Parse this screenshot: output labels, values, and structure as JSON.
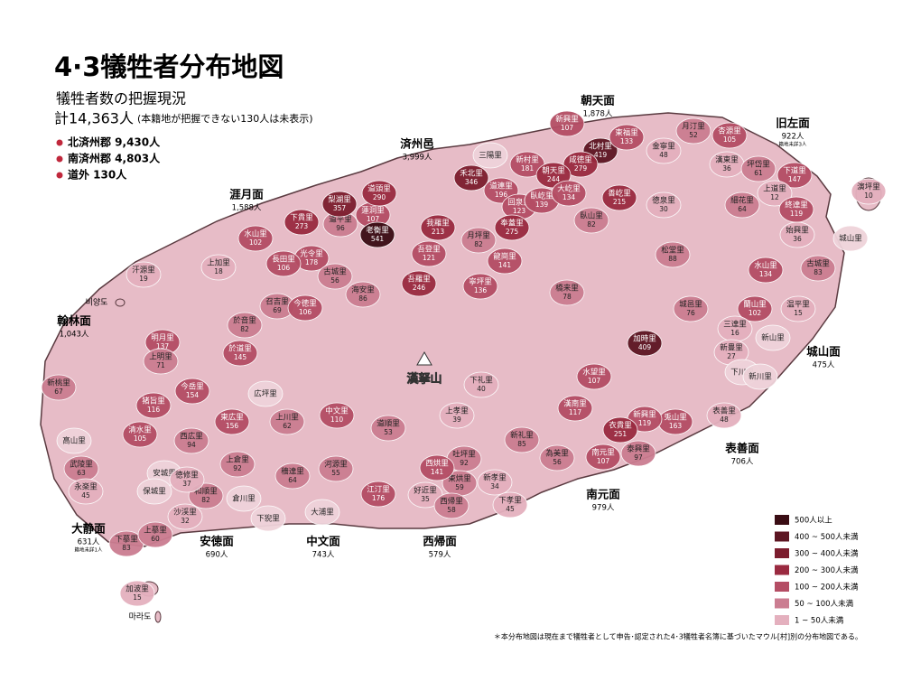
{
  "header": {
    "title": "4·3犠牲者分布地図",
    "subtitle": "犠牲者数の把握現況",
    "total": "計14,363人",
    "note": "(本籍地が把握できない130人は未表示)",
    "stats": [
      "北済州郡 9,430人",
      "南済州郡 4,803人",
      "道外 130人"
    ]
  },
  "regions": [
    {
      "name": "朝天面",
      "count": "1,878人"
    },
    {
      "name": "旧左面",
      "count": "922人",
      "note": "籍地未詳3人"
    },
    {
      "name": "城山面",
      "count": "475人"
    },
    {
      "name": "表善面",
      "count": "706人"
    },
    {
      "name": "南元面",
      "count": "979人"
    },
    {
      "name": "西帰面",
      "count": "579人"
    },
    {
      "name": "中文面",
      "count": "743人"
    },
    {
      "name": "安徳面",
      "count": "690人"
    },
    {
      "name": "大静面",
      "count": "631人",
      "note": "籍地未詳1人"
    },
    {
      "name": "翰林面",
      "count": "1,043人"
    },
    {
      "name": "涯月面",
      "count": "1,588人"
    },
    {
      "name": "済州邑",
      "count": "3,999人"
    }
  ],
  "villages": [
    {
      "name": "新興里",
      "count": 107
    },
    {
      "name": "北村里",
      "count": 419
    },
    {
      "name": "東福里",
      "count": 133
    },
    {
      "name": "咸徳里",
      "count": 279
    },
    {
      "name": "新村里",
      "count": 181
    },
    {
      "name": "朝天里",
      "count": 244
    },
    {
      "name": "金寧里",
      "count": 48
    },
    {
      "name": "月汀里",
      "count": 52
    },
    {
      "name": "杏源里",
      "count": 105
    },
    {
      "name": "漢東里",
      "count": 36
    },
    {
      "name": "坪岱里",
      "count": 61
    },
    {
      "name": "下道里",
      "count": 147
    },
    {
      "name": "上道里",
      "count": 12
    },
    {
      "name": "終達里",
      "count": 119
    },
    {
      "name": "細花里",
      "count": 64
    },
    {
      "name": "徳泉里",
      "count": 30
    },
    {
      "name": "松堂里",
      "count": 88
    },
    {
      "name": "始興里",
      "count": 36
    },
    {
      "name": "城山里"
    },
    {
      "name": "古城里",
      "count": 83
    },
    {
      "name": "水山里",
      "count": 134
    },
    {
      "name": "蘭山里",
      "count": 102
    },
    {
      "name": "温平里",
      "count": 15
    },
    {
      "name": "城邑里",
      "count": 76
    },
    {
      "name": "加時里",
      "count": 409
    },
    {
      "name": "三達里",
      "count": 16
    },
    {
      "name": "新山里"
    },
    {
      "name": "新豊里",
      "count": 27
    },
    {
      "name": "下川里"
    },
    {
      "name": "新川里"
    },
    {
      "name": "表善里",
      "count": 48
    },
    {
      "name": "兎山里",
      "count": 163
    },
    {
      "name": "新興里",
      "count": 119
    },
    {
      "name": "衣貴里",
      "count": 251
    },
    {
      "name": "南元里",
      "count": 107
    },
    {
      "name": "泰興里",
      "count": 97
    },
    {
      "name": "水望里",
      "count": 107
    },
    {
      "name": "漢南里",
      "count": 117
    },
    {
      "name": "為美里",
      "count": 56
    },
    {
      "name": "新礼里",
      "count": 85
    },
    {
      "name": "新孝里",
      "count": 34
    },
    {
      "name": "下孝里",
      "count": 45
    },
    {
      "name": "上孝里",
      "count": 39
    },
    {
      "name": "下礼里",
      "count": 40
    },
    {
      "name": "吐坪里",
      "count": 92
    },
    {
      "name": "東烘里",
      "count": 59
    },
    {
      "name": "西烘里",
      "count": 141
    },
    {
      "name": "好近里",
      "count": 35
    },
    {
      "name": "西帰里",
      "count": 58
    },
    {
      "name": "江汀里",
      "count": 176
    },
    {
      "name": "中文里",
      "count": 110
    },
    {
      "name": "道順里",
      "count": 53
    },
    {
      "name": "河源里",
      "count": 55
    },
    {
      "name": "穡達里",
      "count": 64
    },
    {
      "name": "大浦里"
    },
    {
      "name": "広坪里"
    },
    {
      "name": "東広里",
      "count": 156
    },
    {
      "name": "上川里",
      "count": 62
    },
    {
      "name": "西広里",
      "count": 94
    },
    {
      "name": "上倉里",
      "count": 92
    },
    {
      "name": "今岳里",
      "count": 154
    },
    {
      "name": "猪旨里",
      "count": 116
    },
    {
      "name": "清水里",
      "count": 105
    },
    {
      "name": "於道里",
      "count": 145
    },
    {
      "name": "於音里",
      "count": 82
    },
    {
      "name": "召吉里",
      "count": 69
    },
    {
      "name": "今徳里",
      "count": 106
    },
    {
      "name": "光令里",
      "count": 178
    },
    {
      "name": "古城里",
      "count": 56
    },
    {
      "name": "海安里",
      "count": 86
    },
    {
      "name": "水山里",
      "count": 102
    },
    {
      "name": "長田里",
      "count": 106
    },
    {
      "name": "上加里",
      "count": 18
    },
    {
      "name": "下貴里",
      "count": 273
    },
    {
      "name": "道平里",
      "count": 96
    },
    {
      "name": "蓮洞里",
      "count": 107
    },
    {
      "name": "老衡里",
      "count": 541
    },
    {
      "name": "梨湖里",
      "count": 357
    },
    {
      "name": "道頭里",
      "count": 290
    },
    {
      "name": "禾北里",
      "count": 346
    },
    {
      "name": "三陽里"
    },
    {
      "name": "道連里",
      "count": 196
    },
    {
      "name": "回泉里",
      "count": 123
    },
    {
      "name": "奉蓋里",
      "count": 275
    },
    {
      "name": "我羅里",
      "count": 213
    },
    {
      "name": "月坪里",
      "count": 82
    },
    {
      "name": "龍崗里",
      "count": 141
    },
    {
      "name": "寧坪里",
      "count": 136
    },
    {
      "name": "吾登里",
      "count": 121
    },
    {
      "name": "吾羅里",
      "count": 246
    },
    {
      "name": "橋来里",
      "count": 78
    },
    {
      "name": "臥屹里",
      "count": 139
    },
    {
      "name": "大屹里",
      "count": 134
    },
    {
      "name": "善屹里",
      "count": 215
    },
    {
      "name": "臥山里",
      "count": 82
    },
    {
      "name": "汗源里",
      "count": 19
    },
    {
      "name": "明月里",
      "count": 137
    },
    {
      "name": "上明里",
      "count": 71
    },
    {
      "name": "新桃里",
      "count": 67
    },
    {
      "name": "高山里"
    },
    {
      "name": "武陵里",
      "count": 63
    },
    {
      "name": "永楽里",
      "count": 45
    },
    {
      "name": "下摹里",
      "count": 83
    },
    {
      "name": "上摹里",
      "count": 60
    },
    {
      "name": "安城里"
    },
    {
      "name": "保城里"
    },
    {
      "name": "和順里",
      "count": 82
    },
    {
      "name": "沙渓里",
      "count": 32
    },
    {
      "name": "徳修里",
      "count": 37
    },
    {
      "name": "倉川里"
    },
    {
      "name": "下猊里"
    },
    {
      "name": "加波里",
      "count": 15
    },
    {
      "name": "演坪里",
      "count": 10
    }
  ],
  "islets": [
    "비양도",
    "마라도"
  ],
  "mountain": "漢拏山",
  "legend": [
    {
      "label": "500人以上",
      "min": 500,
      "color": "#3a0d14"
    },
    {
      "label": "400 ~ 500人未満",
      "min": 400,
      "color": "#5c1522"
    },
    {
      "label": "300 ~ 400人未満",
      "min": 300,
      "color": "#7c1d2e"
    },
    {
      "label": "200 ~ 300人未満",
      "min": 200,
      "color": "#9a2a40"
    },
    {
      "label": "100 ~ 200人未満",
      "min": 100,
      "color": "#b44d64"
    },
    {
      "label": "50 ~ 100人未満",
      "min": 50,
      "color": "#cb7d91"
    },
    {
      "label": "1 ~ 50人未満",
      "min": 1,
      "color": "#e4b0be"
    }
  ],
  "footnote": "＊本分布地図は現在まで犠牲者として申告･認定された4･3犠牲者名簿に基づいたマウル[村]別の分布地図である。"
}
